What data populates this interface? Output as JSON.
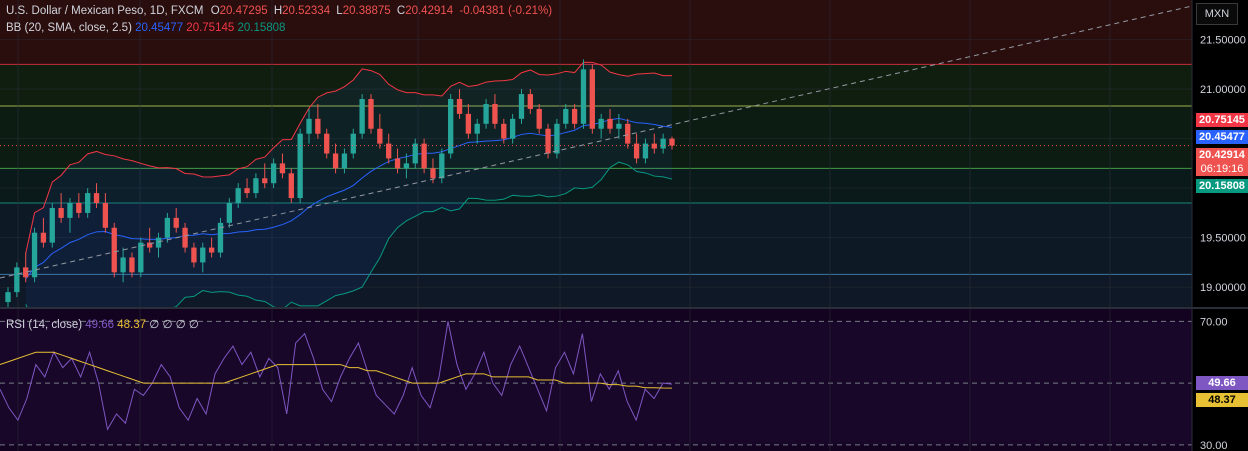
{
  "header": {
    "symbol": "U.S. Dollar / Mexican Peso, 1D, FXCM",
    "ohlc": {
      "o_label": "O",
      "o": "20.47295",
      "h_label": "H",
      "h": "20.52334",
      "l_label": "L",
      "l": "20.38875",
      "c_label": "C",
      "c": "20.42914",
      "change": "-0.04381 (-0.21%)"
    },
    "currency": "MXN"
  },
  "bb_legend": {
    "label": "BB (20, SMA, close, 2.5)",
    "basis": "20.45477",
    "upper": "20.75145",
    "lower": "20.15808"
  },
  "rsi_legend": {
    "label": "RSI (14, close)",
    "rsi": "49.66",
    "ma": "48.37",
    "extras": "∅ ∅ ∅ ∅"
  },
  "price_axis": {
    "ticks": [
      "21.50000",
      "21.00000",
      "20.50000",
      "20.00000",
      "19.50000",
      "19.00000"
    ]
  },
  "price_pills": {
    "upper": "20.75145",
    "basis": "20.45477",
    "close": "20.42914",
    "countdown": "06:19:16",
    "lower": "20.15808"
  },
  "rsi_axis": {
    "ticks": [
      "70.00",
      "30.00"
    ]
  },
  "rsi_pills": {
    "rsi": "49.66",
    "ma": "48.37"
  },
  "colors": {
    "up": "#26a69a",
    "down": "#ef5350",
    "upper_band": "#f23645",
    "basis": "#2962ff",
    "lower_band": "#089981",
    "rsi": "#7e57c2",
    "rsi_ma": "#e7c133",
    "rsi_bg": "#130320"
  },
  "chart_data": [
    {
      "type": "candlestick",
      "title": "U.S. Dollar / Mexican Peso, 1D, FXCM",
      "ylim": [
        18.8,
        21.9
      ],
      "y_ticks": [
        19.0,
        19.5,
        20.0,
        20.5,
        21.0,
        21.5
      ],
      "grid": true,
      "last_close": 20.42914,
      "bollinger": {
        "period": 20,
        "stddev": 2.5,
        "upper_last": 20.75145,
        "basis_last": 20.45477,
        "lower_last": 20.15808
      },
      "fib_levels": [
        21.25,
        20.83,
        20.2,
        19.85,
        19.13
      ],
      "candles": [
        [
          18.85,
          19.0,
          18.8,
          18.95
        ],
        [
          18.95,
          19.25,
          18.9,
          19.2
        ],
        [
          19.2,
          19.35,
          19.05,
          19.1
        ],
        [
          19.1,
          19.6,
          19.05,
          19.55
        ],
        [
          19.55,
          19.7,
          19.4,
          19.45
        ],
        [
          19.45,
          19.85,
          19.4,
          19.8
        ],
        [
          19.8,
          19.95,
          19.65,
          19.7
        ],
        [
          19.7,
          19.9,
          19.55,
          19.85
        ],
        [
          19.85,
          19.95,
          19.7,
          19.75
        ],
        [
          19.75,
          20.0,
          19.7,
          19.95
        ],
        [
          19.95,
          20.05,
          19.8,
          19.85
        ],
        [
          19.85,
          19.95,
          19.55,
          19.6
        ],
        [
          19.6,
          19.65,
          19.1,
          19.15
        ],
        [
          19.15,
          19.4,
          19.05,
          19.3
        ],
        [
          19.3,
          19.35,
          19.1,
          19.15
        ],
        [
          19.15,
          19.5,
          19.1,
          19.45
        ],
        [
          19.45,
          19.6,
          19.35,
          19.4
        ],
        [
          19.4,
          19.55,
          19.3,
          19.5
        ],
        [
          19.5,
          19.75,
          19.45,
          19.7
        ],
        [
          19.7,
          19.8,
          19.55,
          19.6
        ],
        [
          19.6,
          19.65,
          19.35,
          19.4
        ],
        [
          19.4,
          19.45,
          19.2,
          19.25
        ],
        [
          19.25,
          19.45,
          19.15,
          19.4
        ],
        [
          19.4,
          19.5,
          19.3,
          19.35
        ],
        [
          19.35,
          19.7,
          19.3,
          19.65
        ],
        [
          19.65,
          19.9,
          19.6,
          19.85
        ],
        [
          19.85,
          20.05,
          19.8,
          20.0
        ],
        [
          20.0,
          20.1,
          19.9,
          19.95
        ],
        [
          19.95,
          20.15,
          19.9,
          20.1
        ],
        [
          20.1,
          20.25,
          20.0,
          20.05
        ],
        [
          20.05,
          20.3,
          20.0,
          20.25
        ],
        [
          20.25,
          20.35,
          20.1,
          20.15
        ],
        [
          20.15,
          20.2,
          19.85,
          19.9
        ],
        [
          19.9,
          20.6,
          19.85,
          20.55
        ],
        [
          20.55,
          20.8,
          20.45,
          20.7
        ],
        [
          20.7,
          20.85,
          20.5,
          20.55
        ],
        [
          20.55,
          20.6,
          20.3,
          20.35
        ],
        [
          20.35,
          20.45,
          20.15,
          20.2
        ],
        [
          20.2,
          20.4,
          20.15,
          20.35
        ],
        [
          20.35,
          20.6,
          20.3,
          20.55
        ],
        [
          20.55,
          20.95,
          20.5,
          20.9
        ],
        [
          20.9,
          20.95,
          20.55,
          20.6
        ],
        [
          20.6,
          20.75,
          20.4,
          20.45
        ],
        [
          20.45,
          20.55,
          20.25,
          20.3
        ],
        [
          20.3,
          20.4,
          20.15,
          20.2
        ],
        [
          20.2,
          20.35,
          20.1,
          20.25
        ],
        [
          20.25,
          20.5,
          20.2,
          20.45
        ],
        [
          20.45,
          20.5,
          20.15,
          20.2
        ],
        [
          20.2,
          20.3,
          20.05,
          20.1
        ],
        [
          20.1,
          20.4,
          20.05,
          20.35
        ],
        [
          20.35,
          20.95,
          20.3,
          20.9
        ],
        [
          20.9,
          21.0,
          20.7,
          20.75
        ],
        [
          20.75,
          20.85,
          20.5,
          20.55
        ],
        [
          20.55,
          20.7,
          20.45,
          20.65
        ],
        [
          20.65,
          20.9,
          20.6,
          20.85
        ],
        [
          20.85,
          20.95,
          20.6,
          20.65
        ],
        [
          20.65,
          20.7,
          20.45,
          20.5
        ],
        [
          20.5,
          20.75,
          20.45,
          20.7
        ],
        [
          20.7,
          21.0,
          20.65,
          20.95
        ],
        [
          20.95,
          21.0,
          20.75,
          20.8
        ],
        [
          20.8,
          20.85,
          20.55,
          20.6
        ],
        [
          20.6,
          20.65,
          20.3,
          20.35
        ],
        [
          20.35,
          20.7,
          20.3,
          20.65
        ],
        [
          20.65,
          20.85,
          20.6,
          20.8
        ],
        [
          20.8,
          20.85,
          20.6,
          20.65
        ],
        [
          20.65,
          21.3,
          20.6,
          21.2
        ],
        [
          21.2,
          21.25,
          20.55,
          20.6
        ],
        [
          20.6,
          20.75,
          20.5,
          20.7
        ],
        [
          20.7,
          20.8,
          20.55,
          20.6
        ],
        [
          20.6,
          20.75,
          20.5,
          20.65
        ],
        [
          20.65,
          20.7,
          20.4,
          20.45
        ],
        [
          20.45,
          20.55,
          20.25,
          20.3
        ],
        [
          20.3,
          20.5,
          20.25,
          20.45
        ],
        [
          20.45,
          20.55,
          20.35,
          20.4
        ],
        [
          20.4,
          20.55,
          20.35,
          20.5
        ],
        [
          20.5,
          20.52,
          20.39,
          20.43
        ]
      ]
    },
    {
      "type": "line",
      "title": "RSI (14, close)",
      "ylim": [
        28,
        74
      ],
      "levels": [
        70,
        50,
        30
      ],
      "series": [
        {
          "name": "RSI",
          "values": [
            48,
            42,
            38,
            45,
            56,
            52,
            60,
            55,
            58,
            52,
            60,
            50,
            35,
            40,
            37,
            48,
            46,
            50,
            56,
            52,
            42,
            38,
            45,
            40,
            53,
            58,
            62,
            56,
            60,
            52,
            58,
            55,
            40,
            63,
            66,
            58,
            48,
            44,
            52,
            58,
            63,
            54,
            46,
            43,
            40,
            46,
            55,
            46,
            42,
            52,
            70,
            56,
            48,
            53,
            60,
            50,
            46,
            56,
            62,
            55,
            48,
            41,
            55,
            60,
            53,
            66,
            44,
            53,
            48,
            54,
            44,
            38,
            48,
            45,
            50,
            49.66
          ]
        },
        {
          "name": "RSI-based MA",
          "values": [
            56,
            57,
            58,
            59,
            60,
            60,
            60,
            59,
            58,
            57,
            56,
            55,
            54,
            53,
            52,
            51,
            50,
            50,
            50,
            50,
            50,
            50,
            50,
            50,
            50,
            50,
            51,
            52,
            53,
            54,
            55,
            56,
            56,
            56,
            56,
            56,
            56,
            56,
            56,
            55,
            55,
            54,
            54,
            53,
            52,
            51,
            50,
            50,
            50,
            50,
            51,
            52,
            53,
            53,
            53,
            52,
            52,
            52,
            52,
            52,
            51,
            51,
            51,
            50,
            50,
            50,
            50,
            50,
            49.5,
            49.5,
            49,
            49,
            48.5,
            48.5,
            48.4,
            48.37
          ]
        }
      ]
    }
  ]
}
